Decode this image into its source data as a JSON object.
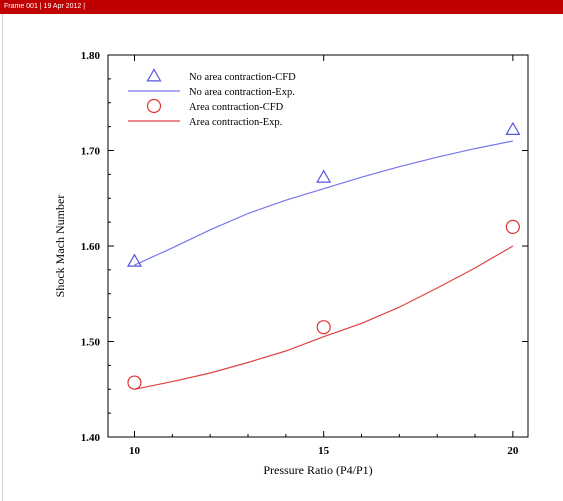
{
  "frame": {
    "label": "Frame 001  | 19 Apr 2012 |"
  },
  "chart_data": {
    "type": "line",
    "title": "",
    "xlabel": "Pressure Ratio (P4/P1)",
    "ylabel": "Shock Mach Number",
    "xlim": [
      9.3,
      20.4
    ],
    "ylim": [
      1.4,
      1.8
    ],
    "x_ticks": [
      10,
      15,
      20
    ],
    "y_ticks": [
      "1.40",
      "1.50",
      "1.60",
      "1.70",
      "1.80"
    ],
    "grid": false,
    "legend_position": "top-left",
    "series": [
      {
        "name": "No area contraction-CFD",
        "kind": "scatter",
        "marker": "triangle",
        "color": "#5555dd",
        "x": [
          10,
          15,
          20
        ],
        "y": [
          1.584,
          1.672,
          1.722
        ]
      },
      {
        "name": "No area contraction-Exp.",
        "kind": "line",
        "color": "#7777ee",
        "x": [
          10,
          11,
          12,
          13,
          14,
          15,
          16,
          17,
          18,
          19,
          20
        ],
        "y": [
          1.58,
          1.598,
          1.617,
          1.634,
          1.648,
          1.66,
          1.672,
          1.683,
          1.693,
          1.702,
          1.71
        ]
      },
      {
        "name": "Area contraction-CFD",
        "kind": "scatter",
        "marker": "circle",
        "color": "#dd3333",
        "x": [
          10,
          15,
          20
        ],
        "y": [
          1.457,
          1.515,
          1.62
        ]
      },
      {
        "name": "Area contraction-Exp.",
        "kind": "line",
        "color": "#dd4444",
        "x": [
          10,
          11,
          12,
          13,
          14,
          15,
          16,
          17,
          18,
          19,
          20
        ],
        "y": [
          1.45,
          1.458,
          1.467,
          1.478,
          1.49,
          1.505,
          1.519,
          1.536,
          1.556,
          1.577,
          1.6
        ]
      }
    ]
  }
}
